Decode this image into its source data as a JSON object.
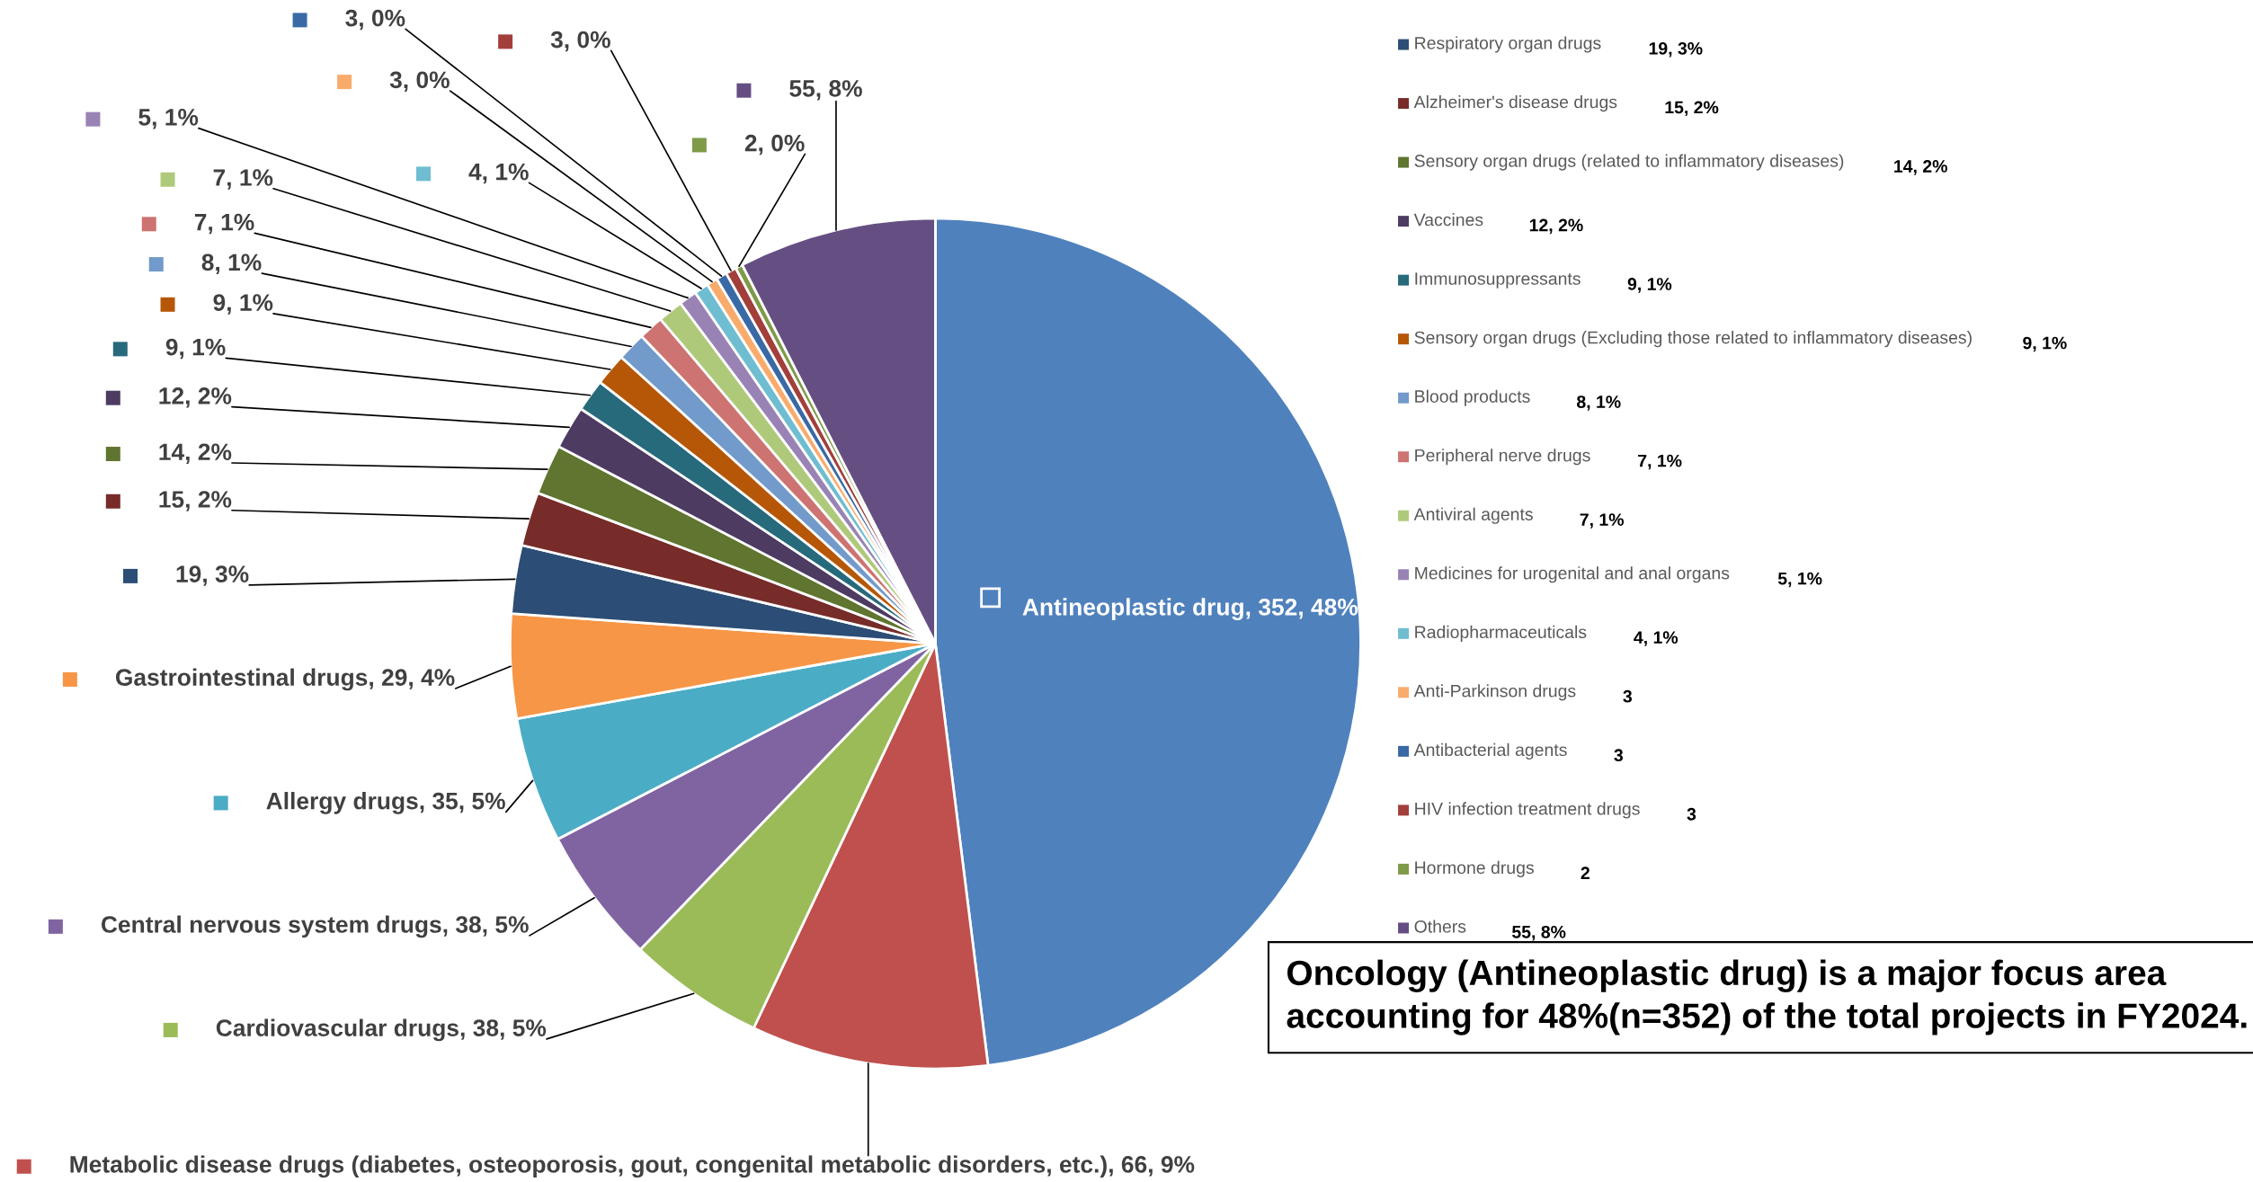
{
  "chart_data": {
    "type": "pie",
    "categories": [
      "Antineoplastic drug",
      "Metabolic disease drugs (diabetes, osteoporosis, gout, congenital metabolic disorders, etc.)",
      "Cardiovascular drugs",
      "Central nervous system drugs",
      "Allergy drugs",
      "Gastrointestinal drugs",
      "Respiratory organ drugs",
      "Alzheimer's disease drugs",
      "Sensory organ drugs (related to inflammatory diseases)",
      "Vaccines",
      "Immunosuppressants",
      "Sensory organ drugs (Excluding those related to inflammatory diseases)",
      "Blood products",
      "Peripheral nerve drugs",
      "Antiviral agents",
      "Medicines for urogenital and anal organs",
      "Radiopharmaceuticals",
      "Anti-Parkinson drugs",
      "Antibacterial agents",
      "HIV infection treatment drugs",
      "Hormone drugs",
      "Others"
    ],
    "values": [
      352,
      66,
      38,
      38,
      35,
      29,
      19,
      15,
      14,
      12,
      9,
      9,
      8,
      7,
      7,
      5,
      4,
      3,
      3,
      3,
      2,
      55
    ],
    "colors": [
      "#4f81bd",
      "#c0504d",
      "#9bbb59",
      "#8064a2",
      "#4bacc6",
      "#f79646",
      "#2c4d75",
      "#772c2a",
      "#5f7530",
      "#4d3b62",
      "#276a7c",
      "#b65708",
      "#729aca",
      "#cd7371",
      "#afc97a",
      "#9983b5",
      "#6fbdd1",
      "#f9ab6b",
      "#3a6aa5",
      "#a33f3b",
      "#7f9a48",
      "#654f82"
    ],
    "value_labels": [
      "352, 48%",
      "66, 9%",
      "38, 5%",
      "38, 5%",
      "35, 5%",
      "29, 4%",
      "19, 3%",
      "15, 2%",
      "14, 2%",
      "12, 2%",
      "9, 1%",
      "9, 1%",
      "8, 1%",
      "7, 1%",
      "7, 1%",
      "5, 1%",
      "4, 1%",
      "3, 0%",
      "3, 0%",
      "3, 0%",
      "2, 0%",
      "55, 8%"
    ],
    "legend": "right",
    "annotations": [
      "Oncology (Antineoplastic drug) is a major focus area accounting for 48%(n=352) of the total projects in FY2024.",
      "19, 3%",
      "15, 2%",
      "14, 2%",
      "12, 2%",
      "9, 1%",
      "9, 1%",
      "8, 1%",
      "7, 1%",
      "7, 1%",
      "5, 1%",
      "4, 1%",
      "3",
      "3",
      "3",
      "2",
      "55, 8%"
    ]
  }
}
